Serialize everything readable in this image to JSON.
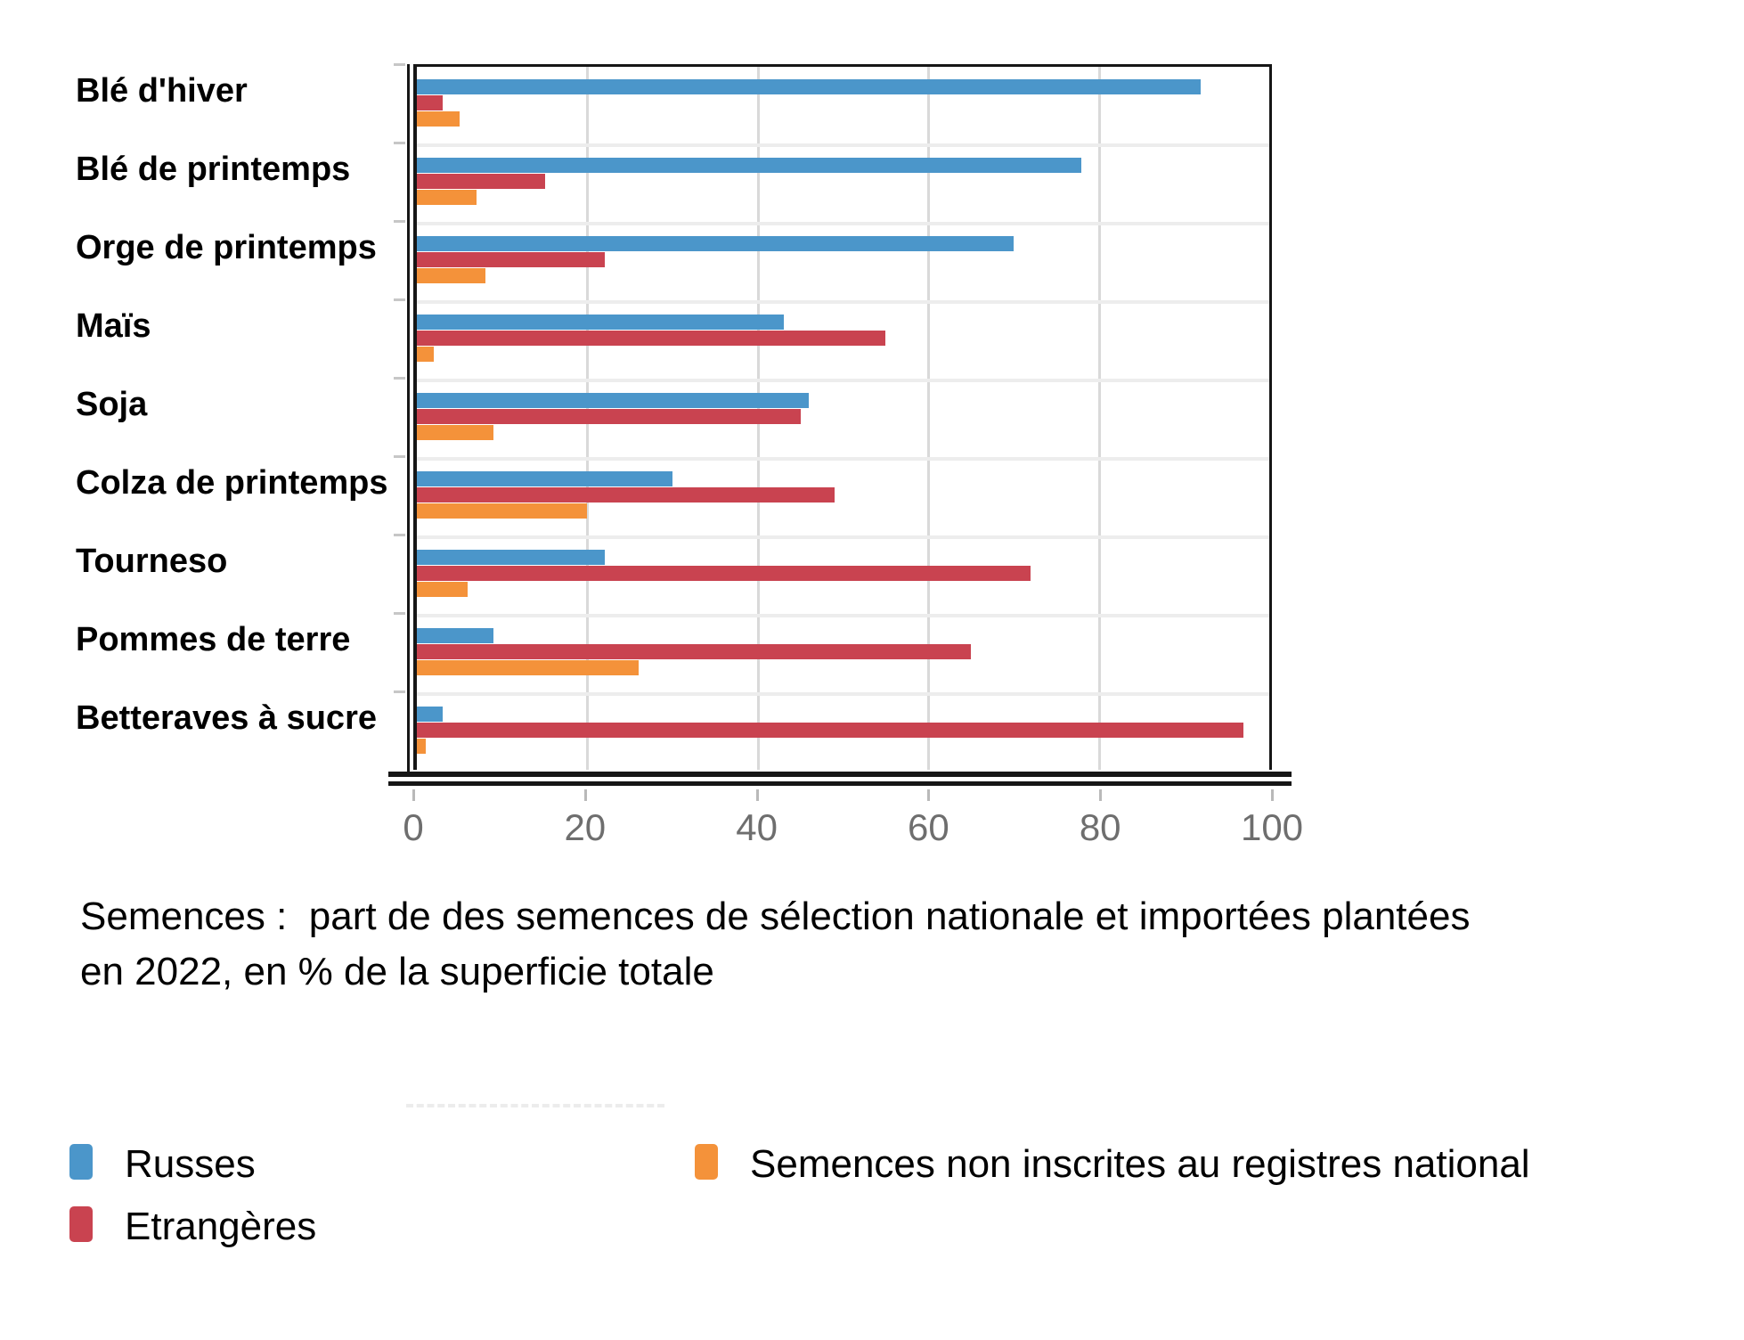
{
  "title": {
    "text": "Semences :  part de des semences de sélection nationale et importées plantées\nen 2022, en % de la superficie totale"
  },
  "colors": {
    "russes": "#4b96ca",
    "etrangeres": "#c94350",
    "non_inscrites": "#f4923a",
    "gridline": "#d9d9d9",
    "band_separator": "#ededed",
    "axis": "#161616",
    "tick_text": "#6e6e6e"
  },
  "chart_data": {
    "type": "bar",
    "orientation": "horizontal",
    "title": "Semences : part de des semences de sélection nationale et importées plantées en 2022, en % de la superficie totale",
    "xlabel": "",
    "ylabel": "",
    "xlim": [
      0,
      100
    ],
    "x_ticks": [
      0,
      20,
      40,
      60,
      80,
      100
    ],
    "grid": true,
    "legend_position": "bottom",
    "categories": [
      "Blé d'hiver",
      "Blé de printemps",
      "Orge de printemps",
      "Maïs",
      "Soja",
      "Colza de printemps",
      "Tourneso",
      "Pommes de terre",
      "Betteraves à sucre"
    ],
    "series": [
      {
        "name": "Russes",
        "key": "russes",
        "color": "#4b96ca",
        "values": [
          92,
          78,
          70,
          43,
          46,
          30,
          22,
          9,
          3
        ]
      },
      {
        "name": "Etrangères",
        "key": "etrangeres",
        "color": "#c94350",
        "values": [
          3,
          15,
          22,
          55,
          45,
          49,
          72,
          65,
          97
        ]
      },
      {
        "name": "Semences non inscrites au registres national",
        "key": "non-inscrites",
        "color": "#f4923a",
        "values": [
          5,
          7,
          8,
          2,
          9,
          20,
          6,
          26,
          1
        ]
      }
    ]
  },
  "legend": {
    "columns": [
      [
        {
          "label": "Russes",
          "color": "#4b96ca"
        },
        {
          "label": "Etrangères",
          "color": "#c94350"
        }
      ],
      [
        {
          "label": "Semences non inscrites au registres national",
          "color": "#f4923a"
        }
      ]
    ]
  }
}
